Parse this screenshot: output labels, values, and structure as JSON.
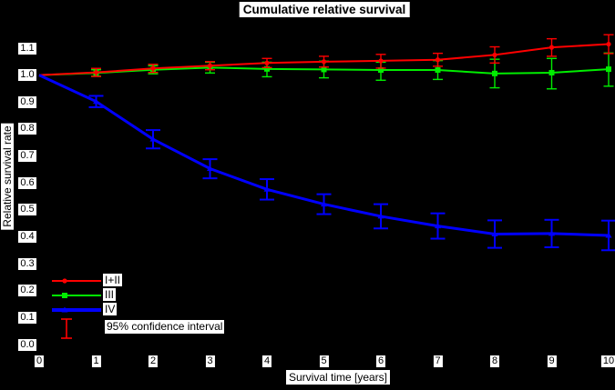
{
  "title": "Cumulative relative survival",
  "axes": {
    "x_label": "Survival time [years]",
    "y_label": "Relative survival rate",
    "x_ticks": [
      "0",
      "1",
      "2",
      "3",
      "4",
      "5",
      "6",
      "7",
      "8",
      "9",
      "10"
    ],
    "y_ticks": [
      "0.0",
      "0.1",
      "0.2",
      "0.3",
      "0.4",
      "0.5",
      "0.6",
      "0.7",
      "0.8",
      "0.9",
      "1.0",
      "1.1"
    ]
  },
  "colors": {
    "background": "#000000",
    "label_background": "#ffffff",
    "label_text": "#000000",
    "series_i_ii": "#ff0000",
    "series_iii": "#00ee00",
    "series_iv": "#0000ff"
  },
  "legend": {
    "items": [
      {
        "label": "I+II",
        "color": "#ff0000",
        "marker": "circle"
      },
      {
        "label": "III",
        "color": "#00ee00",
        "marker": "square"
      },
      {
        "label": "IV",
        "color": "#0000ff",
        "marker": "triangle"
      },
      {
        "label": "95% confidence interval",
        "color": "#ff0000",
        "marker": "error-bar"
      }
    ]
  },
  "chart_data": {
    "type": "line",
    "title": "Cumulative relative survival",
    "xlabel": "Survival time [years]",
    "ylabel": "Relative survival rate",
    "x": [
      0,
      1,
      2,
      3,
      4,
      5,
      6,
      7,
      8,
      9,
      10
    ],
    "xlim": [
      0,
      10
    ],
    "ylim": [
      0.0,
      1.1
    ],
    "grid": false,
    "legend_position": "bottom-left",
    "error_bars": "95% confidence interval",
    "series": [
      {
        "name": "I+II",
        "color": "#ff0000",
        "marker": "circle",
        "values": [
          1.0,
          1.01,
          1.025,
          1.035,
          1.045,
          1.05,
          1.053,
          1.057,
          1.075,
          1.103,
          1.115
        ],
        "ci_low": [
          null,
          0.995,
          1.01,
          1.02,
          1.028,
          1.03,
          1.026,
          1.033,
          1.045,
          1.07,
          1.08
        ],
        "ci_high": [
          null,
          1.025,
          1.04,
          1.05,
          1.062,
          1.07,
          1.077,
          1.081,
          1.105,
          1.135,
          1.15
        ]
      },
      {
        "name": "III",
        "color": "#00ee00",
        "marker": "square",
        "values": [
          1.0,
          1.008,
          1.02,
          1.028,
          1.023,
          1.021,
          1.019,
          1.019,
          1.006,
          1.009,
          1.022
        ],
        "ci_low": [
          null,
          0.996,
          1.005,
          1.008,
          0.994,
          0.99,
          0.981,
          0.984,
          0.953,
          0.949,
          0.959
        ],
        "ci_high": [
          null,
          1.02,
          1.035,
          1.048,
          1.048,
          1.052,
          1.048,
          1.054,
          1.059,
          1.062,
          1.082
        ]
      },
      {
        "name": "IV",
        "color": "#0000ff",
        "marker": "triangle",
        "values": [
          1.0,
          0.902,
          0.762,
          0.653,
          0.576,
          0.521,
          0.476,
          0.44,
          0.41,
          0.412,
          0.405
        ],
        "ci_low": [
          null,
          0.881,
          0.728,
          0.617,
          0.538,
          0.484,
          0.431,
          0.393,
          0.359,
          0.361,
          0.35
        ],
        "ci_high": [
          null,
          0.923,
          0.796,
          0.688,
          0.614,
          0.558,
          0.521,
          0.487,
          0.461,
          0.463,
          0.46
        ]
      }
    ]
  }
}
